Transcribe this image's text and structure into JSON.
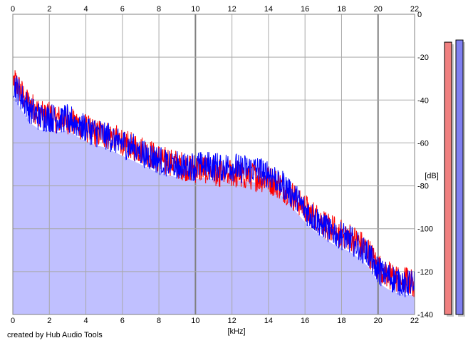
{
  "colors": {
    "background": "#ffffff",
    "plot_fill": "#c0c0ff",
    "grid": "#a8a8a8",
    "grid_major": "#808080",
    "left_channel": "#ff0000",
    "right_channel": "#0000ff",
    "meter_left": "#f08080",
    "meter_right": "#8080f0"
  },
  "chart_data": {
    "type": "area",
    "title": "",
    "xlabel": "[kHz]",
    "ylabel": "[dB]",
    "xlim": [
      0,
      22
    ],
    "ylim": [
      -140,
      0
    ],
    "x_ticks": [
      0,
      2,
      4,
      6,
      8,
      10,
      12,
      14,
      16,
      18,
      20,
      22
    ],
    "x_major_ticks": [
      10,
      20
    ],
    "y_ticks": [
      0,
      -20,
      -40,
      -60,
      -80,
      -100,
      -120,
      -140
    ],
    "grid": true,
    "legend": "none",
    "series": [
      {
        "color": "#ff0000",
        "x": [
          0,
          0.25,
          0.5,
          0.75,
          1,
          1.5,
          2,
          2.5,
          3,
          3.5,
          4,
          4.5,
          5,
          5.5,
          6,
          6.5,
          7,
          7.5,
          8,
          8.5,
          9,
          9.5,
          10,
          10.5,
          11,
          11.5,
          12,
          12.5,
          13,
          13.5,
          14,
          14.5,
          15,
          15.5,
          16,
          16.5,
          17,
          17.5,
          18,
          18.5,
          19,
          19.5,
          20,
          20.5,
          21,
          21.5,
          22
        ],
        "values": [
          -30,
          -33,
          -37,
          -40,
          -43,
          -46,
          -47,
          -49,
          -49,
          -51,
          -53,
          -55,
          -56,
          -57,
          -59,
          -61,
          -63,
          -65,
          -67,
          -68,
          -70,
          -71,
          -72,
          -72,
          -73,
          -74,
          -74,
          -75,
          -75,
          -76,
          -77,
          -79,
          -82,
          -86,
          -90,
          -94,
          -97,
          -100,
          -102,
          -104,
          -107,
          -111,
          -118,
          -121,
          -123,
          -124,
          -125
        ]
      },
      {
        "color": "#0000ff",
        "x": [
          0,
          0.25,
          0.5,
          0.75,
          1,
          1.5,
          2,
          2.5,
          3,
          3.5,
          4,
          4.5,
          5,
          5.5,
          6,
          6.5,
          7,
          7.5,
          8,
          8.5,
          9,
          9.5,
          10,
          10.5,
          11,
          11.5,
          12,
          12.5,
          13,
          13.5,
          14,
          14.5,
          15,
          15.5,
          16,
          16.5,
          17,
          17.5,
          18,
          18.5,
          19,
          19.5,
          20,
          20.5,
          21,
          21.5,
          22
        ],
        "values": [
          -32,
          -35,
          -39,
          -42,
          -45,
          -48,
          -48,
          -49,
          -48,
          -51,
          -53,
          -55,
          -56,
          -58,
          -60,
          -62,
          -64,
          -66,
          -68,
          -69,
          -70,
          -70,
          -71,
          -70,
          -71,
          -71,
          -71,
          -72,
          -72,
          -73,
          -74,
          -77,
          -81,
          -86,
          -91,
          -95,
          -98,
          -101,
          -103,
          -105,
          -108,
          -112,
          -119,
          -122,
          -124,
          -125,
          -125
        ]
      }
    ]
  },
  "meters": {
    "scale_min": -140,
    "scale_max": 0,
    "left_level": -13,
    "right_level": -12
  },
  "footer": {
    "credit": "created by Hub Audio Tools"
  }
}
